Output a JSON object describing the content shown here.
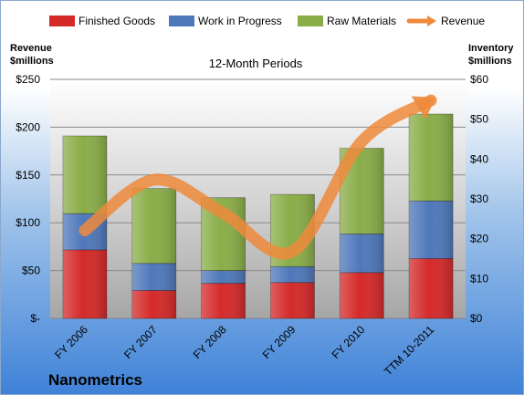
{
  "chart_data": {
    "type": "bar",
    "stacked": true,
    "company": "Nanometrics",
    "subtitle": "12-Month Periods",
    "ylabel_left": [
      "Revenue",
      "$millions"
    ],
    "ylabel_right": [
      "Inventory",
      "$millions"
    ],
    "categories": [
      "FY 2006",
      "FY 2007",
      "FY 2008",
      "FY 2009",
      "FY 2010",
      "TTM 10-2011"
    ],
    "series": [
      {
        "name": "Finished Goods",
        "axis": "right",
        "color": "#d42a2a",
        "values": [
          17.2,
          7.0,
          8.8,
          9.0,
          11.5,
          15.0
        ]
      },
      {
        "name": "Work in Progress",
        "axis": "right",
        "color": "#4f78ba",
        "values": [
          9.1,
          6.8,
          3.2,
          4.0,
          9.7,
          14.5
        ]
      },
      {
        "name": "Raw Materials",
        "axis": "right",
        "color": "#8aad48",
        "values": [
          19.5,
          18.8,
          18.3,
          18.1,
          21.5,
          21.8
        ]
      },
      {
        "name": "Revenue",
        "axis": "left",
        "type": "line",
        "color": "#ee8a3c",
        "values": [
          92,
          145,
          110,
          70,
          185,
          228
        ]
      }
    ],
    "ylim_left": [
      0,
      250
    ],
    "ylim_right": [
      0,
      60
    ],
    "left_ticks": [
      "$-",
      "$50",
      "$100",
      "$150",
      "$200",
      "$250"
    ],
    "right_ticks": [
      "$0",
      "$10",
      "$20",
      "$30",
      "$40",
      "$50",
      "$60"
    ],
    "grid": true,
    "legend_position": "top"
  }
}
